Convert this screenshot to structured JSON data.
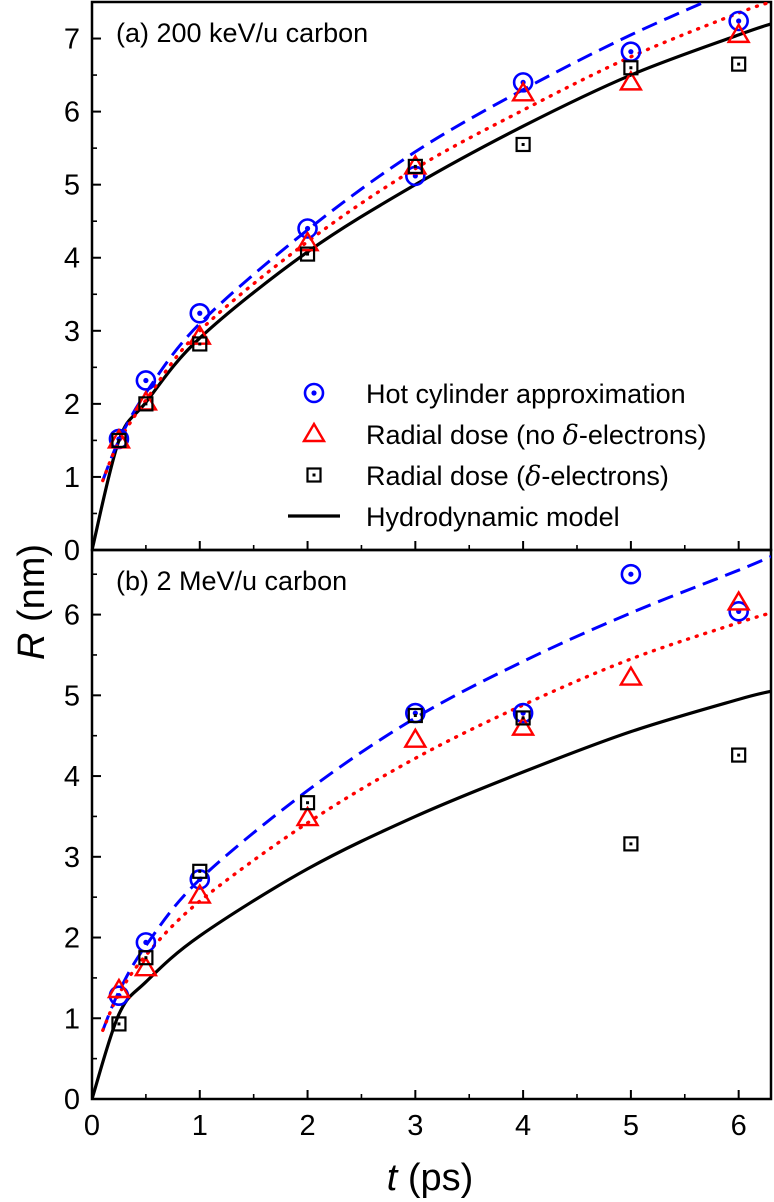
{
  "chart_data": [
    {
      "type": "scatter",
      "panel_label": "(a) 200 keV/u carbon",
      "xlim": [
        0,
        6.3
      ],
      "ylim": [
        0,
        7.5
      ],
      "yticks": [
        "0",
        "1",
        "2",
        "3",
        "4",
        "5",
        "6",
        "7"
      ],
      "grid": false,
      "legend_position": "bottom-right",
      "series": [
        {
          "name": "Hot cylinder approximation",
          "kind": "markers",
          "marker": "circle-dot",
          "color": "#0000ff",
          "x": [
            0.25,
            0.5,
            1,
            2,
            3,
            4,
            5,
            6
          ],
          "y": [
            1.52,
            2.32,
            3.24,
            4.4,
            5.12,
            6.4,
            6.82,
            7.24
          ]
        },
        {
          "name": "Radial dose (no δ-electrons)",
          "kind": "markers",
          "marker": "triangle",
          "color": "#ff0000",
          "x": [
            0.25,
            0.5,
            1,
            2,
            3,
            4,
            5,
            6
          ],
          "y": [
            1.5,
            2.02,
            2.92,
            4.2,
            5.25,
            6.25,
            6.4,
            7.05
          ]
        },
        {
          "name": "Radial dose (δ-electrons)",
          "kind": "markers",
          "marker": "square-dot",
          "color": "#000000",
          "x": [
            0.25,
            0.5,
            1,
            2,
            3,
            4,
            5,
            6
          ],
          "y": [
            1.5,
            2.0,
            2.82,
            4.05,
            5.25,
            5.55,
            6.6,
            6.65
          ]
        },
        {
          "name": "Hydrodynamic model",
          "kind": "line",
          "style": "solid",
          "color": "#000000",
          "x": [
            0,
            0.25,
            0.5,
            1,
            2,
            3,
            4,
            5,
            6,
            6.3
          ],
          "y": [
            0,
            1.5,
            2.02,
            2.9,
            4.08,
            5.0,
            5.8,
            6.5,
            7.05,
            7.2
          ]
        },
        {
          "kind": "line",
          "style": "dashed",
          "color": "#0000ff",
          "x": [
            0.1,
            0.25,
            0.5,
            1,
            2,
            3,
            4,
            5,
            6,
            6.3
          ],
          "y": [
            0.95,
            1.5,
            2.15,
            3.1,
            4.38,
            5.45,
            6.3,
            7.05,
            7.7,
            7.9
          ]
        },
        {
          "kind": "line",
          "style": "dotted",
          "color": "#ff0000",
          "x": [
            0.1,
            0.25,
            0.5,
            1,
            2,
            3,
            4,
            5,
            6,
            6.3
          ],
          "y": [
            0.95,
            1.48,
            2.05,
            3.0,
            4.22,
            5.22,
            6.02,
            6.75,
            7.35,
            7.5
          ]
        }
      ]
    },
    {
      "type": "scatter",
      "panel_label": "(b) 2 MeV/u carbon",
      "xlim": [
        0,
        6.3
      ],
      "ylim": [
        0,
        6.8
      ],
      "xticks": [
        "0",
        "1",
        "2",
        "3",
        "4",
        "5",
        "6"
      ],
      "yticks": [
        "0",
        "1",
        "2",
        "3",
        "4",
        "5",
        "6"
      ],
      "grid": false,
      "series": [
        {
          "name": "Hot cylinder approximation",
          "kind": "markers",
          "marker": "circle-dot",
          "color": "#0000ff",
          "x": [
            0.25,
            0.5,
            1,
            3,
            4,
            5,
            6
          ],
          "y": [
            1.28,
            1.94,
            2.72,
            4.78,
            4.78,
            6.5,
            6.04
          ]
        },
        {
          "name": "Radial dose (no δ-electrons)",
          "kind": "markers",
          "marker": "triangle",
          "color": "#ff0000",
          "x": [
            0.25,
            0.5,
            1,
            2,
            3,
            4,
            5,
            6
          ],
          "y": [
            1.35,
            1.62,
            2.52,
            3.48,
            4.45,
            4.6,
            5.22,
            6.15
          ]
        },
        {
          "name": "Radial dose (δ-electrons)",
          "kind": "markers",
          "marker": "square-dot",
          "color": "#000000",
          "x": [
            0.25,
            0.5,
            1,
            2,
            3,
            4,
            5,
            6
          ],
          "y": [
            0.93,
            1.75,
            2.82,
            3.67,
            4.75,
            4.72,
            3.16,
            4.26
          ]
        },
        {
          "name": "Hydrodynamic model",
          "kind": "line",
          "style": "solid",
          "color": "#000000",
          "x": [
            0,
            0.25,
            0.5,
            1,
            2,
            3,
            4,
            5,
            6,
            6.3
          ],
          "y": [
            0,
            1.05,
            1.45,
            2.02,
            2.85,
            3.5,
            4.05,
            4.55,
            4.95,
            5.05
          ]
        },
        {
          "kind": "line",
          "style": "dashed",
          "color": "#0000ff",
          "x": [
            0.1,
            0.25,
            0.5,
            1,
            2,
            3,
            4,
            5,
            6,
            6.3
          ],
          "y": [
            0.85,
            1.33,
            1.9,
            2.72,
            3.82,
            4.72,
            5.42,
            6.02,
            6.55,
            6.72
          ]
        },
        {
          "kind": "line",
          "style": "dotted",
          "color": "#ff0000",
          "x": [
            0.1,
            0.25,
            0.5,
            1,
            2,
            3,
            4,
            5,
            6,
            6.3
          ],
          "y": [
            0.85,
            1.3,
            1.78,
            2.45,
            3.42,
            4.22,
            4.88,
            5.45,
            5.9,
            6.02
          ]
        }
      ]
    }
  ],
  "axes": {
    "ylabel_italic": "R",
    "ylabel_unit": " (nm)",
    "xlabel_italic": "t",
    "xlabel_unit": " (ps)"
  },
  "legend": [
    {
      "text_pre": "Hot cylinder approximation",
      "delta": "",
      "text_post": "",
      "marker": "circle-dot",
      "color": "#0000ff"
    },
    {
      "text_pre": "Radial dose (no ",
      "delta": "δ",
      "text_post": "-electrons)",
      "marker": "triangle",
      "color": "#ff0000"
    },
    {
      "text_pre": "Radial dose (",
      "delta": "δ",
      "text_post": "-electrons)",
      "marker": "square-dot",
      "color": "#000000"
    },
    {
      "text_pre": "Hydrodynamic model",
      "delta": "",
      "text_post": "",
      "marker": "line",
      "color": "#000000"
    }
  ]
}
